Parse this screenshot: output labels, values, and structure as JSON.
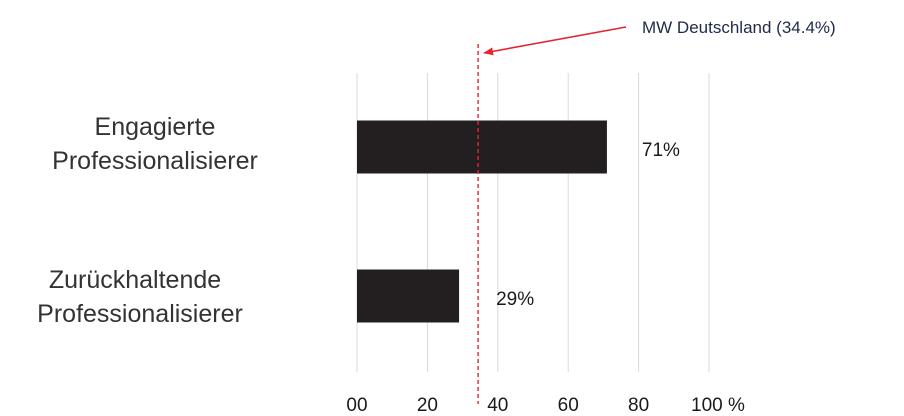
{
  "chart_data": {
    "type": "bar",
    "orientation": "horizontal",
    "categories": [
      [
        "Engagierte",
        "Professionalisierer"
      ],
      [
        "Zurückhaltende",
        "Professionalisierer"
      ]
    ],
    "values": [
      71,
      29
    ],
    "value_labels": [
      "71%",
      "29%"
    ],
    "xlim": [
      0,
      100
    ],
    "x_ticks": [
      0,
      20,
      40,
      60,
      80,
      100
    ],
    "x_tick_labels": [
      "00",
      "20",
      "40",
      "60",
      "80",
      "100 %"
    ],
    "grid": "vertical",
    "bar_color": "#231f20",
    "reference_line": {
      "value": 34.4,
      "label": "MW Deutschland (34.4%)",
      "color": "#e3262e",
      "style": "dashed"
    }
  }
}
